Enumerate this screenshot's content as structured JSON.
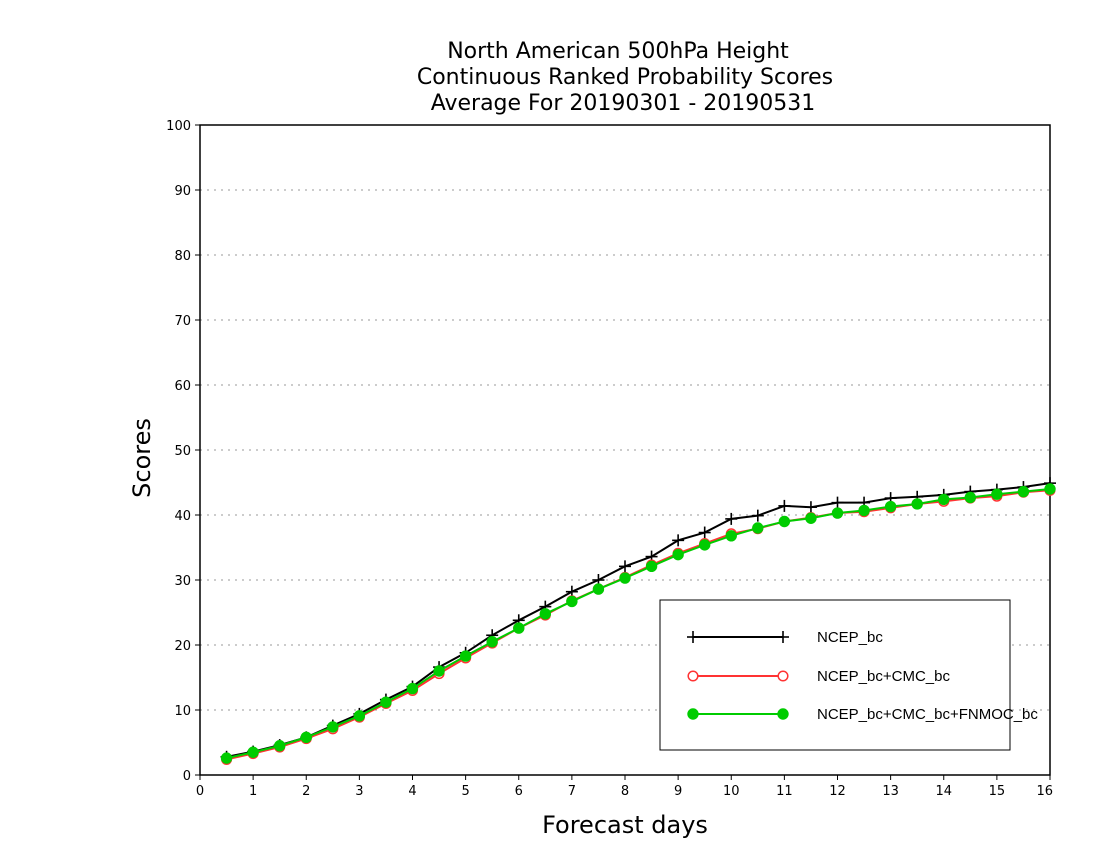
{
  "chart_data": {
    "type": "line",
    "title_lines": [
      "North American 500hPa Height",
      "Continuous Ranked Probability Scores",
      "Average For 20190301 - 20190531"
    ],
    "xlabel": "Forecast days",
    "ylabel": "Scores",
    "xlim": [
      0,
      16
    ],
    "ylim": [
      0,
      100
    ],
    "x_ticks": [
      0,
      1,
      2,
      3,
      4,
      5,
      6,
      7,
      8,
      9,
      10,
      11,
      12,
      13,
      14,
      15,
      16
    ],
    "y_ticks": [
      0,
      10,
      20,
      30,
      40,
      50,
      60,
      70,
      80,
      90,
      100
    ],
    "grid": "horizontal dotted",
    "legend_position": "bottom-right",
    "x": [
      0.5,
      1,
      1.5,
      2,
      2.5,
      3,
      3.5,
      4,
      4.5,
      5,
      5.5,
      6,
      6.5,
      7,
      7.5,
      8,
      8.5,
      9,
      9.5,
      10,
      10.5,
      11,
      11.5,
      12,
      12.5,
      13,
      13.5,
      14,
      14.5,
      15,
      15.5,
      16
    ],
    "series": [
      {
        "name": "NCEP_bc",
        "color": "#000000",
        "marker": "plus",
        "values": [
          2.8,
          3.6,
          4.6,
          5.8,
          7.6,
          9.4,
          11.6,
          13.6,
          16.6,
          18.8,
          21.5,
          23.8,
          25.9,
          28.2,
          30.0,
          32.1,
          33.6,
          36.1,
          37.3,
          39.4,
          39.9,
          41.4,
          41.2,
          41.9,
          41.9,
          42.6,
          42.8,
          43.1,
          43.6,
          43.9,
          44.3,
          44.9
        ]
      },
      {
        "name": "NCEP_bc+CMC_bc",
        "color": "#ff3333",
        "marker": "open-circle",
        "values": [
          2.4,
          3.3,
          4.3,
          5.6,
          7.1,
          8.9,
          11.0,
          13.0,
          15.6,
          18.0,
          20.3,
          22.6,
          24.6,
          26.8,
          28.6,
          30.4,
          32.3,
          34.1,
          35.6,
          37.1,
          37.9,
          39.0,
          39.6,
          40.3,
          40.5,
          41.1,
          41.7,
          42.1,
          42.6,
          42.9,
          43.5,
          43.8
        ]
      },
      {
        "name": "NCEP_bc+CMC_bc+FNMOC_bc",
        "color": "#00cc00",
        "marker": "filled-circle",
        "values": [
          2.6,
          3.5,
          4.5,
          5.8,
          7.4,
          9.1,
          11.2,
          13.3,
          16.0,
          18.3,
          20.5,
          22.6,
          24.8,
          26.7,
          28.6,
          30.3,
          32.1,
          33.9,
          35.4,
          36.8,
          38.0,
          39.0,
          39.5,
          40.3,
          40.7,
          41.3,
          41.7,
          42.4,
          42.7,
          43.2,
          43.6,
          44.0
        ]
      }
    ]
  }
}
